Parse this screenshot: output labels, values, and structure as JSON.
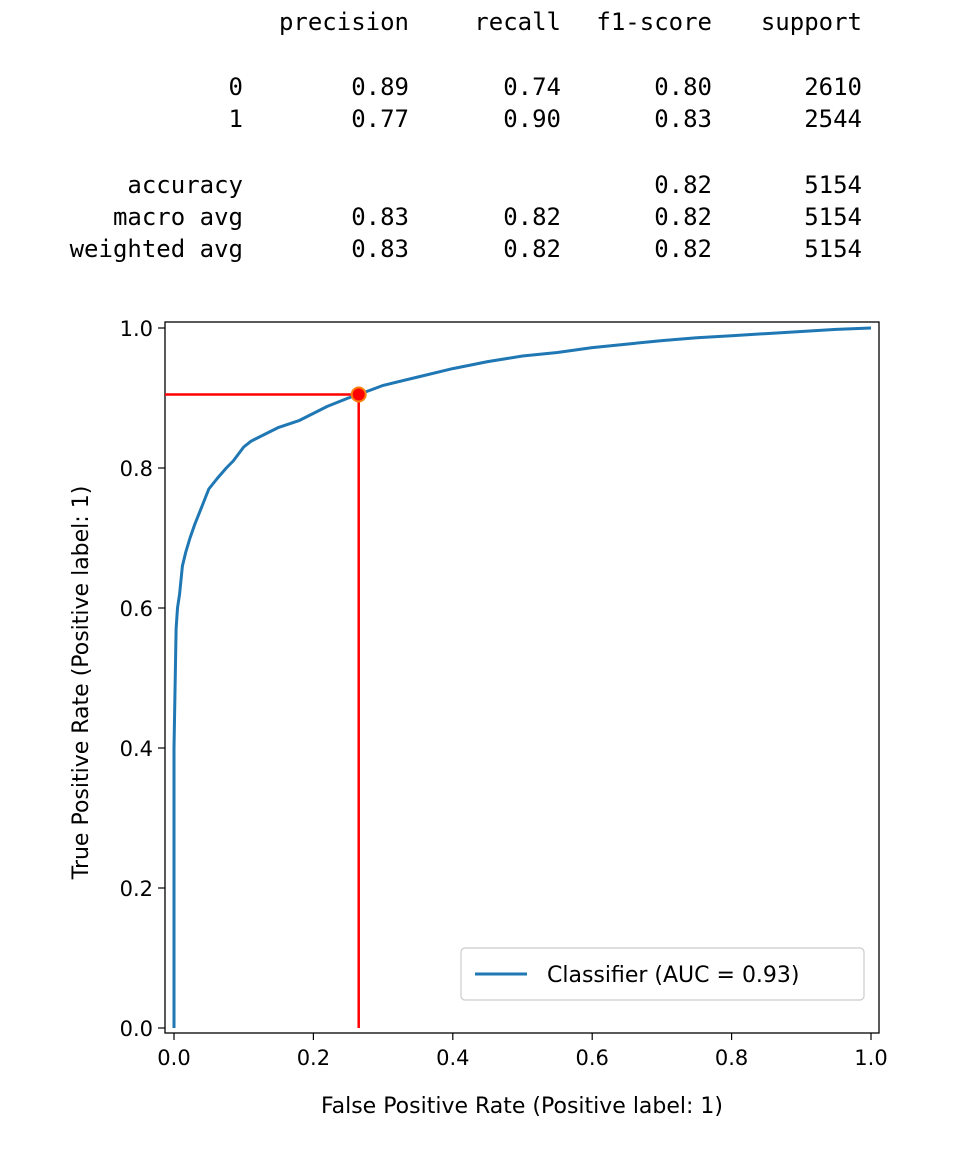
{
  "report": {
    "header": [
      "precision",
      "recall",
      "f1-score",
      "support"
    ],
    "rows": [
      {
        "label": "0",
        "precision": "0.89",
        "recall": "0.74",
        "f1": "0.80",
        "support": "2610"
      },
      {
        "label": "1",
        "precision": "0.77",
        "recall": "0.90",
        "f1": "0.83",
        "support": "2544"
      },
      {
        "label": "accuracy",
        "precision": "",
        "recall": "",
        "f1": "0.82",
        "support": "5154"
      },
      {
        "label": "macro avg",
        "precision": "0.83",
        "recall": "0.82",
        "f1": "0.82",
        "support": "5154"
      },
      {
        "label": "weighted avg",
        "precision": "0.83",
        "recall": "0.82",
        "f1": "0.82",
        "support": "5154"
      }
    ]
  },
  "chart_data": {
    "type": "line",
    "xlabel": "False Positive Rate (Positive label: 1)",
    "ylabel": "True Positive Rate (Positive label: 1)",
    "xlim": [
      0,
      1
    ],
    "ylim": [
      0,
      1
    ],
    "xticks": [
      "0.0",
      "0.2",
      "0.4",
      "0.6",
      "0.8",
      "1.0"
    ],
    "yticks": [
      "0.0",
      "0.2",
      "0.4",
      "0.6",
      "0.8",
      "1.0"
    ],
    "grid": false,
    "legend_position": "bottom-right",
    "series": [
      {
        "name": "Classifier (AUC = 0.93)",
        "color": "#1f77b4",
        "x": [
          0.0,
          0.0,
          0.003,
          0.005,
          0.008,
          0.012,
          0.017,
          0.023,
          0.03,
          0.04,
          0.05,
          0.062,
          0.075,
          0.085,
          0.1,
          0.11,
          0.13,
          0.15,
          0.18,
          0.2,
          0.22,
          0.25,
          0.265,
          0.3,
          0.35,
          0.4,
          0.45,
          0.5,
          0.55,
          0.6,
          0.65,
          0.7,
          0.75,
          0.8,
          0.85,
          0.9,
          0.95,
          1.0
        ],
        "y": [
          0.0,
          0.4,
          0.57,
          0.6,
          0.62,
          0.66,
          0.68,
          0.7,
          0.72,
          0.745,
          0.77,
          0.785,
          0.8,
          0.81,
          0.83,
          0.838,
          0.848,
          0.858,
          0.868,
          0.878,
          0.888,
          0.9,
          0.905,
          0.918,
          0.93,
          0.942,
          0.952,
          0.96,
          0.965,
          0.972,
          0.977,
          0.982,
          0.986,
          0.989,
          0.992,
          0.995,
          0.998,
          1.0
        ]
      }
    ],
    "threshold_point": {
      "x": 0.265,
      "y": 0.905,
      "color": "#ff0000",
      "line_color": "#ff0000"
    }
  }
}
